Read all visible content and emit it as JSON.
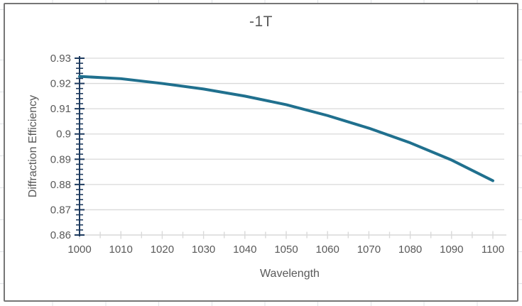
{
  "chart_data": {
    "type": "line",
    "title": "-1T",
    "xlabel": "Wavelength",
    "ylabel": "Diffraction Efficiency",
    "x": [
      1000,
      1010,
      1020,
      1030,
      1040,
      1050,
      1060,
      1070,
      1080,
      1090,
      1100
    ],
    "series": [
      {
        "name": "-1T",
        "values": [
          0.9228,
          0.9219,
          0.92,
          0.9178,
          0.915,
          0.9116,
          0.9073,
          0.9023,
          0.8965,
          0.8897,
          0.8815
        ],
        "color": "#20708E",
        "line_width": 4
      }
    ],
    "xlim": [
      1000,
      1100
    ],
    "ylim": [
      0.86,
      0.93
    ],
    "x_major_tick": 10,
    "x_minor_tick": 5,
    "y_major_tick": 0.01,
    "y_minor_tick": 0.002,
    "x_tick_labels": [
      "1000",
      "1010",
      "1020",
      "1030",
      "1040",
      "1050",
      "1060",
      "1070",
      "1080",
      "1090",
      "1100"
    ],
    "y_tick_labels": [
      "0.93",
      "0.92",
      "0.91",
      "0.9",
      "0.89",
      "0.88",
      "0.87",
      "0.86"
    ],
    "grid": "horizontal",
    "legend": "none",
    "colors": {
      "series_line": "#20708E",
      "gridline": "#d9d9d9",
      "y_axis": "#1d3a5e",
      "x_axis": "#d9d9d9",
      "text": "#595959",
      "chart_border": "#767676",
      "sheet_gridline": "#dfe2e6",
      "background": "#ffffff"
    }
  }
}
